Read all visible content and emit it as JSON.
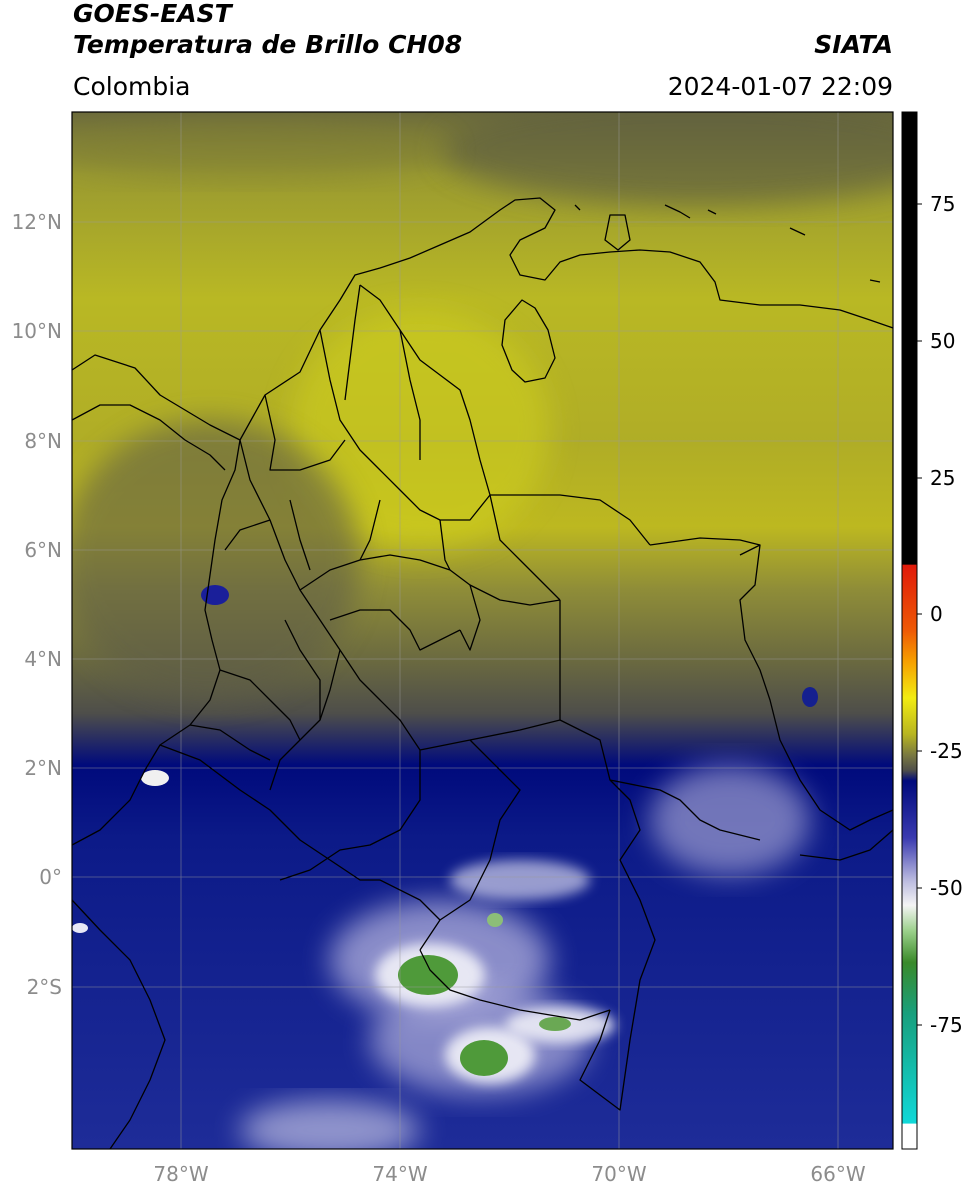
{
  "header": {
    "satellite": "GOES-EAST",
    "product": "Temperatura de Brillo CH08",
    "source": "SIATA",
    "region": "Colombia",
    "timestamp": "2024-01-07 22:09"
  },
  "map": {
    "lat_labels": [
      "12°N",
      "10°N",
      "8°N",
      "6°N",
      "4°N",
      "2°N",
      "0°",
      "2°S"
    ],
    "lon_labels": [
      "78°W",
      "74°W",
      "70°W",
      "66°W"
    ],
    "lat_range": [
      -5,
      14
    ],
    "lon_range": [
      -80,
      -65
    ]
  },
  "colorbar": {
    "tick_labels": [
      "75",
      "50",
      "25",
      "0",
      "-25",
      "-50",
      "-75"
    ],
    "range": [
      -95,
      90
    ],
    "colors": {
      "high": "#000000",
      "warm_red": "#e01a0a",
      "orange": "#f6a000",
      "yellow": "#f2ec12",
      "olive": "#b8b520",
      "gray": "#4e4e4a",
      "navy": "#000a7c",
      "blue": "#3a3ab0",
      "lavender": "#b8b8de",
      "white": "#f4f4f4",
      "green": "#3a8a2a",
      "teal": "#18a07e",
      "cyan": "#10d8d8"
    }
  }
}
